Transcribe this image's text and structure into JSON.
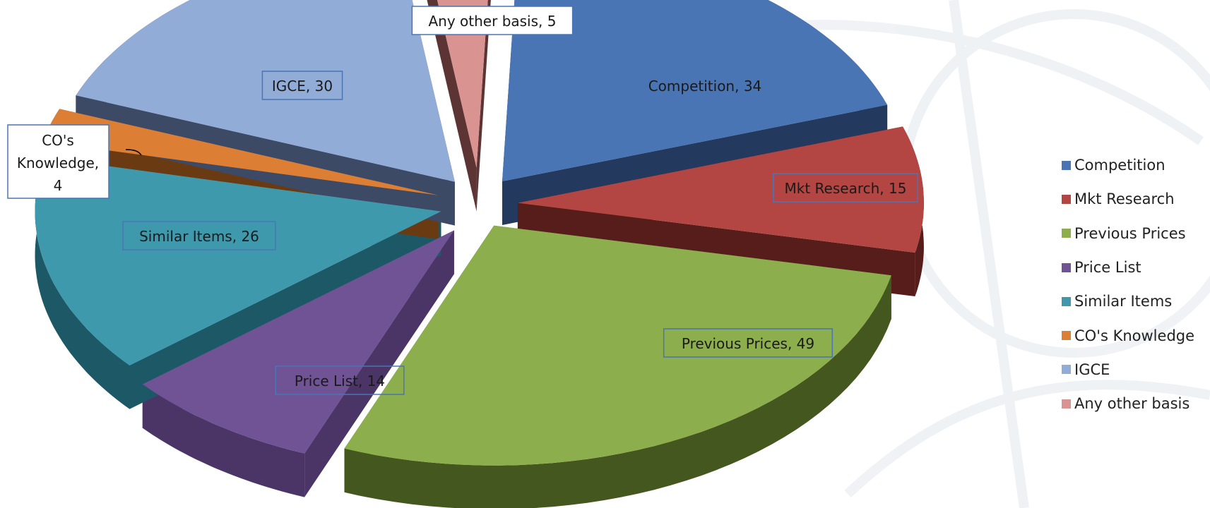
{
  "chart_data": {
    "type": "pie",
    "title": "",
    "categories": [
      "Competition",
      "Mkt Research",
      "Previous Prices",
      "Price List",
      "Similar Items",
      "CO's Knowledge",
      "IGCE",
      "Any other basis"
    ],
    "values": [
      34,
      15,
      49,
      14,
      26,
      4,
      30,
      5
    ],
    "data_labels": [
      "Competition, 34",
      "Mkt Research, 15",
      "Previous Prices, 49",
      "Price List, 14",
      "Similar Items, 26",
      "CO's Knowledge, 4",
      "IGCE, 30",
      "Any other basis, 5"
    ],
    "colors": [
      "#4a75b5",
      "#b34642",
      "#8cae4c",
      "#6f5395",
      "#3e99ad",
      "#dc7f35",
      "#92acd8",
      "#d99391"
    ],
    "side_colors": [
      "#23395e",
      "#561d1b",
      "#43571f",
      "#4a3566",
      "#1c5866",
      "#6a3b12",
      "#3c4a66",
      "#5c3434"
    ],
    "style": "3d-exploded",
    "legend_position": "right"
  }
}
